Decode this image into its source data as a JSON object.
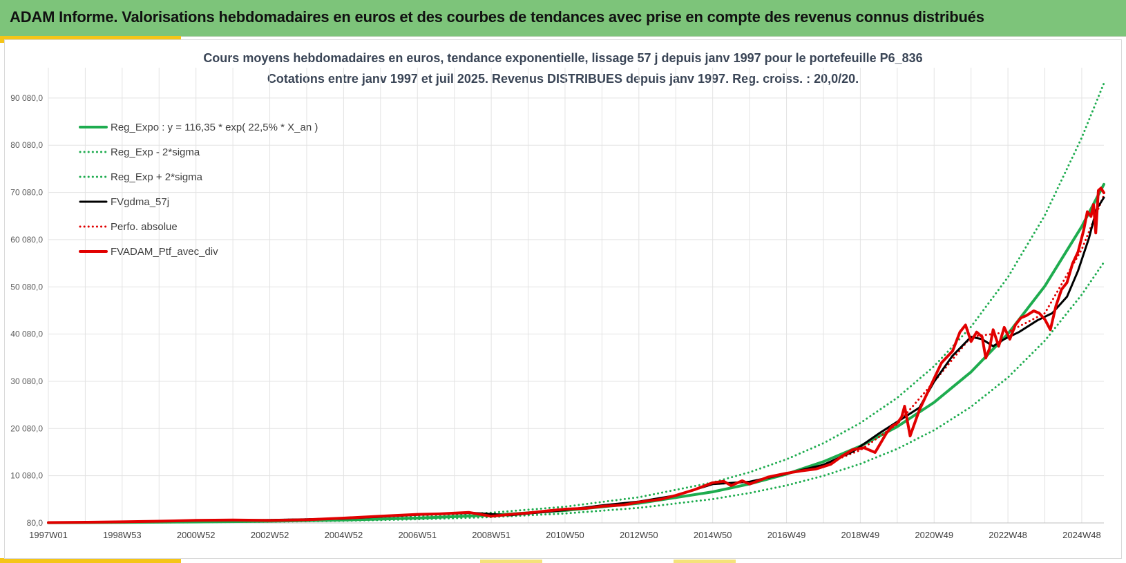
{
  "header": {
    "title": "ADAM Informe. Valorisations hebdomadaires en euros et des courbes de tendances avec prise en compte des revenus connus distribués"
  },
  "chart_data": {
    "type": "line",
    "title": "Cours moyens hebdomadaires  en euros, tendance exponentielle, lissage 57 j depuis janv 1997 pour le portefeuille P6_836",
    "subtitle": "Cotations entre janv 1997 et juil 2025. Revenus DISTRIBUES depuis janv 1997. Reg. croiss. : 20,0/20.",
    "xlabel": "",
    "ylabel": "",
    "x_range": [
      1997.0,
      2025.6
    ],
    "ylim": [
      80,
      96500
    ],
    "y_ticks": [
      "80,0",
      "10 080,0",
      "20 080,0",
      "30 080,0",
      "40 080,0",
      "50 080,0",
      "60 080,0",
      "70 080,0",
      "80 080,0",
      "90 080,0"
    ],
    "y_tick_values": [
      80,
      10080,
      20080,
      30080,
      40080,
      50080,
      60080,
      70080,
      80080,
      90080
    ],
    "x_ticks": [
      "1997W01",
      "1998W53",
      "2000W52",
      "2002W52",
      "2004W52",
      "2006W51",
      "2008W51",
      "2010W50",
      "2012W50",
      "2014W50",
      "2016W49",
      "2018W49",
      "2020W49",
      "2022W48",
      "2024W48"
    ],
    "x_tick_values": [
      1997.0,
      1999.0,
      2001.0,
      2003.0,
      2005.0,
      2007.0,
      2009.0,
      2011.0,
      2013.0,
      2015.0,
      2017.0,
      2019.0,
      2021.0,
      2023.0,
      2025.0
    ],
    "grid": true,
    "legend_position": "top-left",
    "series": [
      {
        "name": "Reg_Expo : y = 116,35 * exp( 22,5% *  X_an )",
        "style": "solid",
        "color": "#1eac4f",
        "width": 4,
        "x": [
          1997.0,
          1999.0,
          2001.0,
          2003.0,
          2005.0,
          2007.0,
          2009.0,
          2011.0,
          2013.0,
          2015.0,
          2016.0,
          2017.0,
          2018.0,
          2019.0,
          2020.0,
          2021.0,
          2022.0,
          2023.0,
          2024.0,
          2025.0,
          2025.6
        ],
        "values": [
          116,
          182,
          286,
          450,
          700,
          1100,
          1730,
          2710,
          4250,
          6660,
          8330,
          10430,
          13060,
          16350,
          20460,
          25610,
          32060,
          40130,
          50230,
          62870,
          71800
        ]
      },
      {
        "name": "Reg_Exp - 2*sigma",
        "style": "dotted",
        "color": "#1eac4f",
        "width": 3,
        "x": [
          1997.0,
          1999.0,
          2001.0,
          2003.0,
          2005.0,
          2007.0,
          2009.0,
          2011.0,
          2013.0,
          2015.0,
          2016.0,
          2017.0,
          2018.0,
          2019.0,
          2020.0,
          2021.0,
          2022.0,
          2023.0,
          2024.0,
          2025.0,
          2025.6
        ],
        "values": [
          90,
          140,
          220,
          345,
          540,
          850,
          1330,
          2090,
          3270,
          5130,
          6410,
          8030,
          10060,
          12590,
          15760,
          19720,
          24690,
          30900,
          38680,
          48410,
          55300
        ]
      },
      {
        "name": "Reg_Exp + 2*sigma",
        "style": "dotted",
        "color": "#1eac4f",
        "width": 3,
        "x": [
          1997.0,
          1999.0,
          2001.0,
          2003.0,
          2005.0,
          2007.0,
          2009.0,
          2011.0,
          2013.0,
          2015.0,
          2016.0,
          2017.0,
          2018.0,
          2019.0,
          2020.0,
          2021.0,
          2022.0,
          2023.0,
          2024.0,
          2025.0,
          2025.6
        ],
        "values": [
          150,
          236,
          370,
          582,
          910,
          1430,
          2250,
          3520,
          5520,
          8650,
          10820,
          13550,
          16960,
          21230,
          26580,
          33270,
          41640,
          52120,
          65240,
          81660,
          93200
        ]
      },
      {
        "name": "FVgdma_57j",
        "style": "solid",
        "color": "#000000",
        "width": 3,
        "x": [
          1997.0,
          1999.0,
          2001.0,
          2003.0,
          2005.0,
          2007.0,
          2008.5,
          2009.5,
          2011.0,
          2012.0,
          2013.0,
          2014.0,
          2015.0,
          2016.0,
          2017.0,
          2018.0,
          2018.8,
          2019.5,
          2020.2,
          2020.6,
          2021.0,
          2021.5,
          2022.0,
          2022.3,
          2022.6,
          2022.9,
          2023.3,
          2023.8,
          2024.2,
          2024.6,
          2024.9,
          2025.2,
          2025.4,
          2025.6
        ],
        "values": [
          150,
          300,
          600,
          700,
          1000,
          1800,
          2200,
          1700,
          2800,
          3800,
          4600,
          5900,
          8300,
          8800,
          10500,
          12400,
          15200,
          19000,
          22500,
          24500,
          30000,
          35500,
          39500,
          39000,
          37500,
          39000,
          40500,
          43000,
          44500,
          48000,
          53500,
          60500,
          66500,
          69000
        ]
      },
      {
        "name": "Perfo. absolue",
        "style": "dotted",
        "color": "#e10000",
        "width": 3,
        "x": [
          1997.0,
          1999.0,
          2001.0,
          2003.0,
          2005.0,
          2007.0,
          2008.5,
          2009.5,
          2011.0,
          2012.0,
          2013.0,
          2014.0,
          2015.0,
          2016.0,
          2017.0,
          2018.0,
          2019.0,
          2020.0,
          2021.0,
          2022.0,
          2023.0,
          2024.0,
          2025.0,
          2025.6
        ],
        "values": [
          150,
          300,
          600,
          700,
          1000,
          1800,
          2200,
          1700,
          2800,
          3800,
          4600,
          5900,
          8300,
          8800,
          10500,
          12400,
          15500,
          21000,
          30000,
          39500,
          40500,
          44500,
          58000,
          69500
        ]
      },
      {
        "name": "FVADAM_Ptf_avec_div",
        "style": "solid",
        "color": "#e10000",
        "width": 4,
        "x": [
          1997.0,
          1998.0,
          1999.0,
          2000.0,
          2001.0,
          2002.0,
          2003.0,
          2004.0,
          2005.0,
          2006.0,
          2007.0,
          2007.6,
          2008.4,
          2009.0,
          2009.4,
          2010.0,
          2010.6,
          2011.0,
          2011.6,
          2012.0,
          2012.6,
          2013.0,
          2013.6,
          2014.0,
          2014.5,
          2015.0,
          2015.3,
          2015.5,
          2015.8,
          2016.0,
          2016.5,
          2017.0,
          2017.4,
          2017.8,
          2018.2,
          2018.5,
          2018.8,
          2019.1,
          2019.4,
          2019.7,
          2019.85,
          2020.0,
          2020.12,
          2020.2,
          2020.35,
          2020.6,
          2020.9,
          2021.2,
          2021.5,
          2021.7,
          2021.85,
          2022.0,
          2022.15,
          2022.3,
          2022.4,
          2022.5,
          2022.6,
          2022.75,
          2022.9,
          2023.05,
          2023.2,
          2023.35,
          2023.5,
          2023.7,
          2023.85,
          2024.0,
          2024.15,
          2024.3,
          2024.45,
          2024.6,
          2024.75,
          2024.9,
          2025.05,
          2025.15,
          2025.25,
          2025.32,
          2025.38,
          2025.45,
          2025.52,
          2025.6
        ],
        "values": [
          150,
          220,
          320,
          450,
          620,
          700,
          600,
          750,
          1100,
          1500,
          1900,
          2000,
          2300,
          1500,
          1800,
          2200,
          2700,
          3000,
          3200,
          3600,
          3900,
          4500,
          5100,
          5900,
          7100,
          8600,
          8900,
          8000,
          9000,
          8300,
          9800,
          10600,
          11100,
          11500,
          12500,
          14200,
          15600,
          16000,
          15000,
          19000,
          20500,
          21200,
          22500,
          24800,
          18500,
          24000,
          29000,
          34000,
          36500,
          40500,
          42000,
          38500,
          40500,
          39500,
          35000,
          37000,
          41000,
          37500,
          41500,
          39000,
          42000,
          43500,
          44000,
          45000,
          44500,
          43200,
          41000,
          46000,
          49500,
          51000,
          55000,
          57500,
          62000,
          66000,
          65000,
          67500,
          61500,
          70500,
          71000,
          70000
        ]
      }
    ]
  }
}
